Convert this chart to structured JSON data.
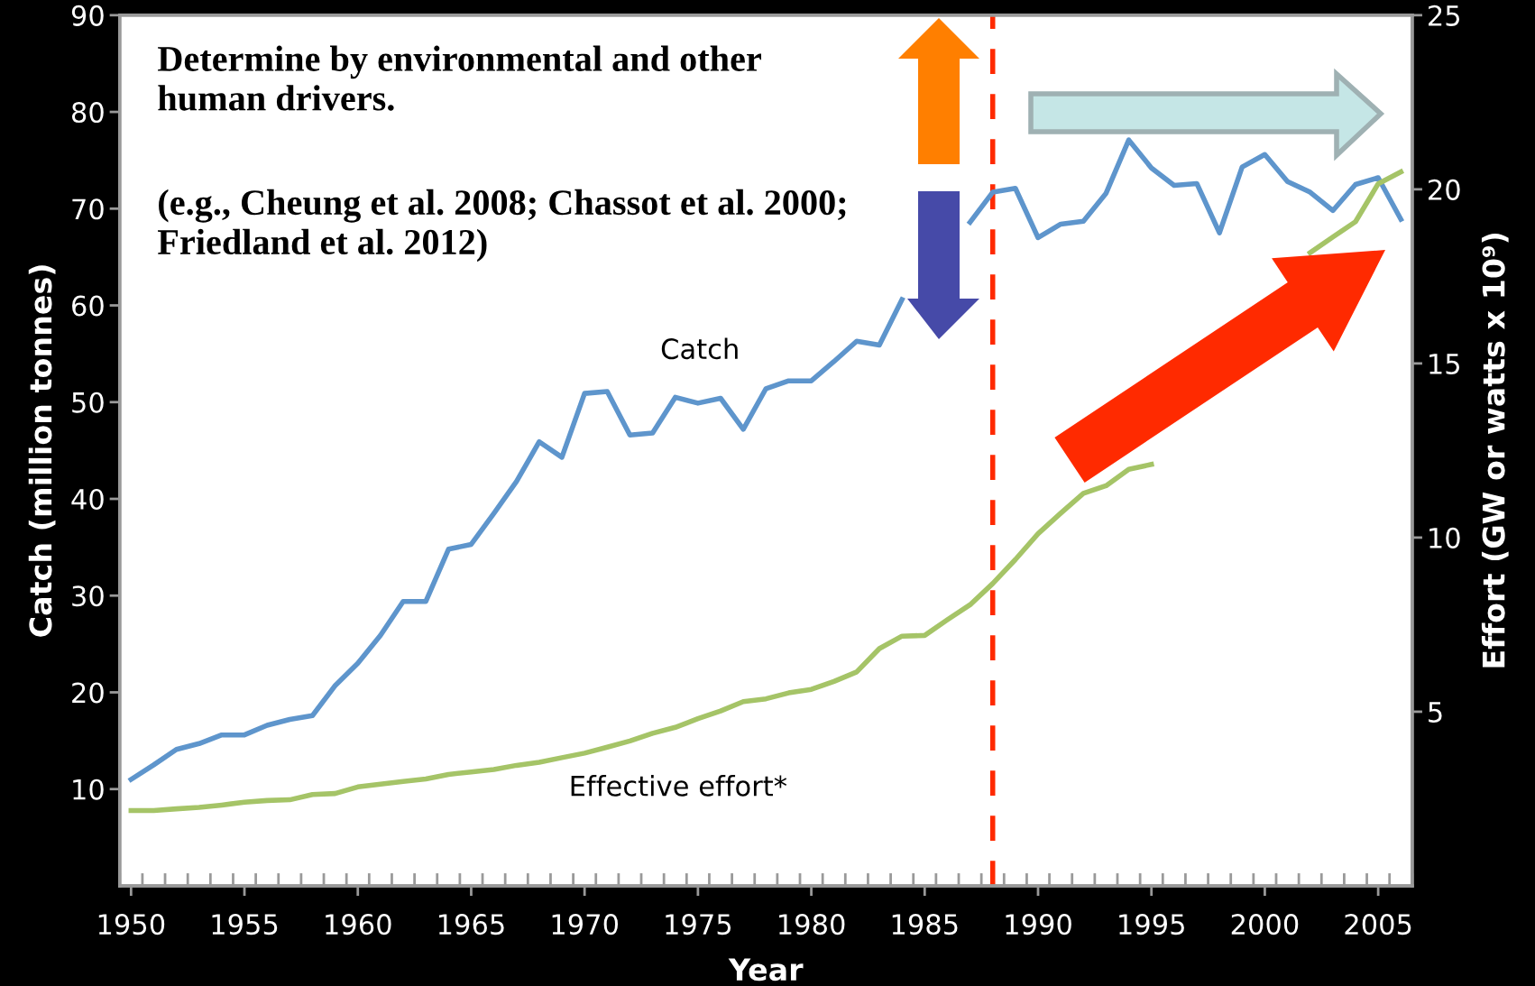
{
  "chart_data": {
    "type": "line",
    "xlabel": "Year",
    "ylabel": "Catch (million tonnes)",
    "y2label": "Effort (GW or watts x 10⁹)",
    "annotations": [
      "Determine by environmental and other human drivers.",
      "(e.g., Cheung et al. 2008; Chassot et al. 2000; Friedland et al. 2012)"
    ],
    "x": [
      1950,
      1951,
      1952,
      1953,
      1954,
      1955,
      1956,
      1957,
      1958,
      1959,
      1960,
      1961,
      1962,
      1963,
      1964,
      1965,
      1966,
      1967,
      1968,
      1969,
      1970,
      1971,
      1972,
      1973,
      1974,
      1975,
      1976,
      1977,
      1978,
      1979,
      1980,
      1981,
      1982,
      1983,
      1984,
      1985,
      1986,
      1987,
      1988,
      1989,
      1990,
      1991,
      1992,
      1993,
      1994,
      1995,
      1996,
      1997,
      1998,
      1999,
      2000,
      2001,
      2002,
      2003,
      2004,
      2005,
      2006
    ],
    "series": [
      {
        "name": "Catch",
        "color": "#5e95cc",
        "values": [
          11.0,
          12.5,
          14.1,
          14.7,
          15.6,
          15.6,
          16.6,
          17.2,
          17.6,
          20.7,
          23.0,
          25.9,
          29.4,
          29.4,
          34.8,
          35.3,
          38.5,
          41.8,
          45.9,
          44.3,
          50.9,
          51.1,
          46.6,
          46.8,
          50.5,
          49.9,
          50.4,
          47.2,
          51.4,
          52.2,
          52.2,
          54.2,
          56.3,
          55.9,
          60.6,
          null,
          null,
          68.6,
          71.7,
          72.1,
          67.0,
          68.4,
          68.7,
          71.6,
          77.1,
          74.2,
          72.4,
          72.6,
          67.5,
          74.3,
          75.6,
          72.8,
          71.7,
          69.8,
          72.5,
          73.2,
          68.9
        ]
      },
      {
        "name": "Effective effort*",
        "color": "#a5c467",
        "axis": "y2",
        "values": [
          2.16,
          2.16,
          2.21,
          2.25,
          2.32,
          2.4,
          2.45,
          2.47,
          2.62,
          2.65,
          2.84,
          2.92,
          3.0,
          3.07,
          3.2,
          3.27,
          3.34,
          3.46,
          3.55,
          3.68,
          3.81,
          3.98,
          4.16,
          4.38,
          4.55,
          4.8,
          5.02,
          5.29,
          5.37,
          5.54,
          5.64,
          5.87,
          6.14,
          6.81,
          7.17,
          7.19,
          7.64,
          8.07,
          8.68,
          9.37,
          10.11,
          10.7,
          11.27,
          11.49,
          11.96,
          12.1,
          null,
          null,
          null,
          null,
          null,
          null,
          18.18,
          18.63,
          19.07,
          20.16,
          20.5
        ]
      }
    ],
    "xlim": [
      1949.5,
      2006.5
    ],
    "xticks": [
      {
        "value": 1949.5,
        "label": null
      },
      1950,
      {
        "value": 1950.5,
        "label": null
      },
      {
        "value": 1951.5,
        "label": null
      },
      {
        "value": 1952.5,
        "label": null
      },
      {
        "value": 1953.5,
        "label": null
      },
      {
        "value": 1954.5,
        "label": null
      },
      1955,
      {
        "value": 1955.5,
        "label": null
      },
      {
        "value": 1956.5,
        "label": null
      },
      {
        "value": 1957.5,
        "label": null
      },
      {
        "value": 1958.5,
        "label": null
      },
      {
        "value": 1959.5,
        "label": null
      },
      1960,
      {
        "value": 1960.5,
        "label": null
      },
      {
        "value": 1961.5,
        "label": null
      },
      {
        "value": 1962.5,
        "label": null
      },
      {
        "value": 1963.5,
        "label": null
      },
      {
        "value": 1964.5,
        "label": null
      },
      1965,
      {
        "value": 1965.5,
        "label": null
      },
      {
        "value": 1966.5,
        "label": null
      },
      {
        "value": 1967.5,
        "label": null
      },
      {
        "value": 1968.5,
        "label": null
      },
      {
        "value": 1969.5,
        "label": null
      },
      1970,
      {
        "value": 1970.5,
        "label": null
      },
      {
        "value": 1971.5,
        "label": null
      },
      {
        "value": 1972.5,
        "label": null
      },
      {
        "value": 1973.5,
        "label": null
      },
      {
        "value": 1974.5,
        "label": null
      },
      1975,
      {
        "value": 1975.5,
        "label": null
      },
      {
        "value": 1976.5,
        "label": null
      },
      {
        "value": 1977.5,
        "label": null
      },
      {
        "value": 1978.5,
        "label": null
      },
      {
        "value": 1979.5,
        "label": null
      },
      1980,
      {
        "value": 1980.5,
        "label": null
      },
      {
        "value": 1981.5,
        "label": null
      },
      {
        "value": 1982.5,
        "label": null
      },
      {
        "value": 1983.5,
        "label": null
      },
      {
        "value": 1984.5,
        "label": null
      },
      1985,
      {
        "value": 1985.5,
        "label": null
      },
      {
        "value": 1986.5,
        "label": null
      },
      {
        "value": 1987.5,
        "label": null
      },
      {
        "value": 1988.5,
        "label": null
      },
      {
        "value": 1989.5,
        "label": null
      },
      1990,
      {
        "value": 1990.5,
        "label": null
      },
      {
        "value": 1991.5,
        "label": null
      },
      {
        "value": 1992.5,
        "label": null
      },
      {
        "value": 1993.5,
        "label": null
      },
      {
        "value": 1994.5,
        "label": null
      },
      1995,
      {
        "value": 1995.5,
        "label": null
      },
      {
        "value": 1996.5,
        "label": null
      },
      {
        "value": 1997.5,
        "label": null
      },
      {
        "value": 1998.5,
        "label": null
      },
      {
        "value": 1999.5,
        "label": null
      },
      2000,
      {
        "value": 2000.5,
        "label": null
      },
      {
        "value": 2001.5,
        "label": null
      },
      {
        "value": 2002.5,
        "label": null
      },
      {
        "value": 2003.5,
        "label": null
      },
      {
        "value": 2004.5,
        "label": null
      },
      2005,
      {
        "value": 2005.5,
        "label": null
      },
      {
        "value": 2006.5,
        "label": null
      }
    ],
    "ylim": [
      0,
      90
    ],
    "yticks": [
      10,
      20,
      30,
      40,
      50,
      60,
      70,
      80,
      90
    ],
    "y2lim": [
      0,
      25
    ],
    "y2ticks": [
      5,
      10,
      15,
      20,
      25
    ],
    "ref_lines": [
      {
        "axis": "x",
        "value": 1988,
        "color": "#ff2a00",
        "line_style": "dashed"
      }
    ],
    "grid": false,
    "legend": false,
    "marker": "none",
    "line_style": "solid"
  }
}
